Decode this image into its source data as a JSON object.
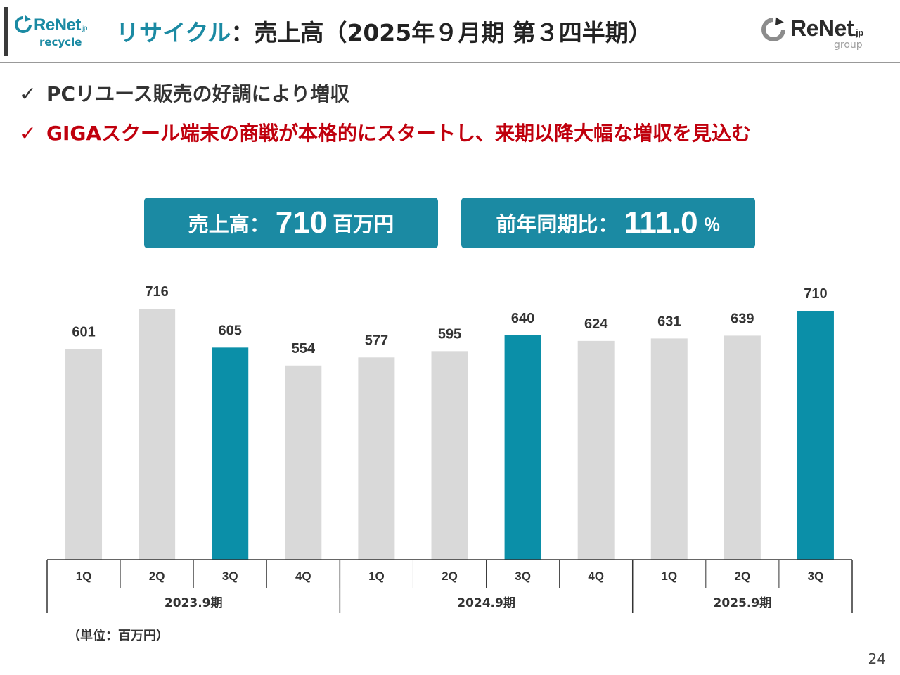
{
  "header": {
    "logo_left": {
      "brand": "ReNet",
      "suffix": ".jp",
      "sub": "recycle"
    },
    "title_accent": "リサイクル",
    "title_rest": "：売上高（2025年９月期 第３四半期）",
    "logo_right": {
      "brand": "ReNet",
      "suffix": ".jp",
      "sub": "group"
    }
  },
  "bullets": [
    {
      "check": "✓",
      "text": "PCリユース販売の好調により増収",
      "color": "#333333"
    },
    {
      "check": "✓",
      "text": "GIGAスクール端末の商戦が本格的にスタートし、来期以降大幅な増収を見込む",
      "color": "#c0000d"
    }
  ],
  "kpis": [
    {
      "label": "売上高：",
      "value": "710",
      "unit": "百万円"
    },
    {
      "label": "前年同期比：",
      "value": "111.0",
      "unit": "％"
    }
  ],
  "chart_data": {
    "type": "bar",
    "categories": [
      "1Q",
      "2Q",
      "3Q",
      "4Q",
      "1Q",
      "2Q",
      "3Q",
      "4Q",
      "1Q",
      "2Q",
      "3Q"
    ],
    "groups": [
      {
        "label": "2023.9期",
        "count": 4
      },
      {
        "label": "2024.9期",
        "count": 4
      },
      {
        "label": "2025.9期",
        "count": 3
      }
    ],
    "values": [
      601,
      716,
      605,
      554,
      577,
      595,
      640,
      624,
      631,
      639,
      710
    ],
    "highlighted": [
      false,
      false,
      true,
      false,
      false,
      false,
      true,
      false,
      false,
      false,
      true
    ],
    "colors": {
      "default": "#d9d9d9",
      "highlight": "#0b8fa8"
    },
    "title": "",
    "xlabel": "",
    "ylabel": "",
    "ylim": [
      0,
      750
    ],
    "grid": false,
    "legend": "none"
  },
  "footer": {
    "unit_note": "（単位：百万円）",
    "page_number": "24"
  }
}
